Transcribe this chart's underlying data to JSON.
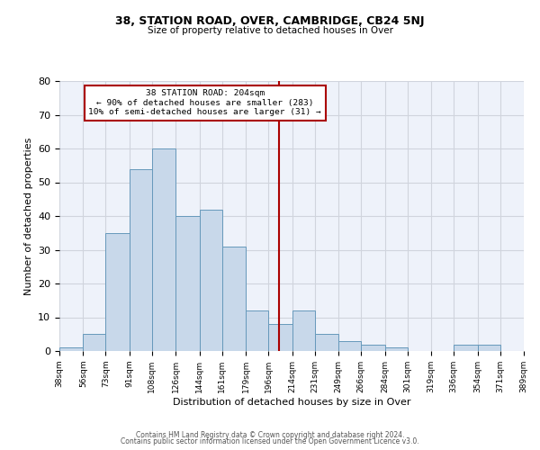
{
  "title": "38, STATION ROAD, OVER, CAMBRIDGE, CB24 5NJ",
  "subtitle": "Size of property relative to detached houses in Over",
  "xlabel": "Distribution of detached houses by size in Over",
  "ylabel": "Number of detached properties",
  "bar_color": "#c8d8ea",
  "bar_edge_color": "#6699bb",
  "background_color": "#eef2fa",
  "grid_color": "#d0d4dd",
  "vline_x": 204,
  "vline_color": "#aa0000",
  "annotation_title": "38 STATION ROAD: 204sqm",
  "annotation_line1": "← 90% of detached houses are smaller (283)",
  "annotation_line2": "10% of semi-detached houses are larger (31) →",
  "bin_edges": [
    38,
    56,
    73,
    91,
    108,
    126,
    144,
    161,
    179,
    196,
    214,
    231,
    249,
    266,
    284,
    301,
    319,
    336,
    354,
    371,
    389
  ],
  "bar_heights": [
    1,
    5,
    35,
    54,
    60,
    40,
    42,
    31,
    12,
    8,
    12,
    5,
    3,
    2,
    1,
    0,
    0,
    2,
    2,
    0
  ],
  "ylim": [
    0,
    80
  ],
  "yticks": [
    0,
    10,
    20,
    30,
    40,
    50,
    60,
    70,
    80
  ],
  "footer_line1": "Contains HM Land Registry data © Crown copyright and database right 2024.",
  "footer_line2": "Contains public sector information licensed under the Open Government Licence v3.0."
}
